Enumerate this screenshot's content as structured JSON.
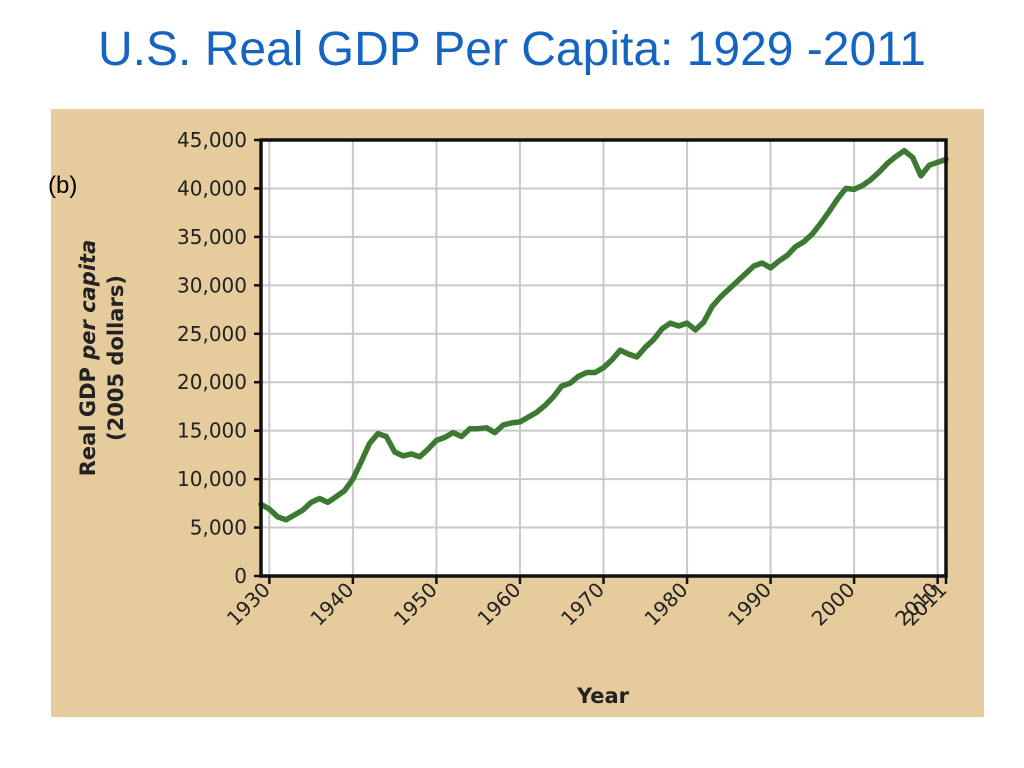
{
  "title": "U.S. Real GDP Per Capita: 1929 -2011",
  "panel_label": "(b)",
  "colors": {
    "title": "#1565c0",
    "panel_bg": "#e6cc9c",
    "line": "#3c7a32",
    "grid": "#c9c9c9",
    "plot_bg": "#ffffff"
  },
  "chart_data": {
    "type": "line",
    "xlabel": "Year",
    "ylabel_normal": "Real GDP ",
    "ylabel_italic": "per capita",
    "ylabel_line2": "(2005 dollars)",
    "xlim": [
      1929,
      2011
    ],
    "ylim": [
      0,
      45000
    ],
    "xticks": [
      1930,
      1940,
      1950,
      1960,
      1970,
      1980,
      1990,
      2000,
      2010,
      2011
    ],
    "xtick_labels": [
      "1930",
      "1940",
      "1950",
      "1960",
      "1970",
      "1980",
      "1990",
      "2000",
      "2010",
      "2011"
    ],
    "yticks": [
      0,
      5000,
      10000,
      15000,
      20000,
      25000,
      30000,
      35000,
      40000,
      45000
    ],
    "ytick_labels": [
      "0",
      "5,000",
      "10,000",
      "15,000",
      "20,000",
      "25,000",
      "30,000",
      "35,000",
      "40,000",
      "45,000"
    ],
    "grid": true,
    "series": [
      {
        "x": [
          1929,
          1930,
          1931,
          1932,
          1933,
          1934,
          1935,
          1936,
          1937,
          1938,
          1939,
          1940,
          1941,
          1942,
          1943,
          1944,
          1945,
          1946,
          1947,
          1948,
          1949,
          1950,
          1951,
          1952,
          1953,
          1954,
          1955,
          1956,
          1957,
          1958,
          1959,
          1960,
          1961,
          1962,
          1963,
          1964,
          1965,
          1966,
          1967,
          1968,
          1969,
          1970,
          1971,
          1972,
          1973,
          1974,
          1975,
          1976,
          1977,
          1978,
          1979,
          1980,
          1981,
          1982,
          1983,
          1984,
          1985,
          1986,
          1987,
          1988,
          1989,
          1990,
          1991,
          1992,
          1993,
          1994,
          1995,
          1996,
          1997,
          1998,
          1999,
          2000,
          2001,
          2002,
          2003,
          2004,
          2005,
          2006,
          2007,
          2008,
          2009,
          2010,
          2011
        ],
        "values": [
          7400,
          6900,
          6100,
          5800,
          6300,
          6800,
          7600,
          8000,
          7600,
          8200,
          8800,
          10000,
          11800,
          13700,
          14700,
          14400,
          12800,
          12400,
          12600,
          12300,
          13100,
          14000,
          14300,
          14800,
          14400,
          15200,
          15200,
          15300,
          14800,
          15600,
          15800,
          15900,
          16400,
          16900,
          17600,
          18500,
          19600,
          19900,
          20600,
          21000,
          21000,
          21500,
          22300,
          23300,
          22900,
          22600,
          23600,
          24400,
          25500,
          26100,
          25800,
          26100,
          25400,
          26200,
          27800,
          28800,
          29600,
          30400,
          31200,
          32000,
          32300,
          31800,
          32500,
          33100,
          34000,
          34500,
          35300,
          36400,
          37600,
          38900,
          40000,
          39900,
          40300,
          40900,
          41700,
          42600,
          43300,
          43900,
          43200,
          41300,
          42400,
          42700,
          43000
        ]
      }
    ]
  }
}
